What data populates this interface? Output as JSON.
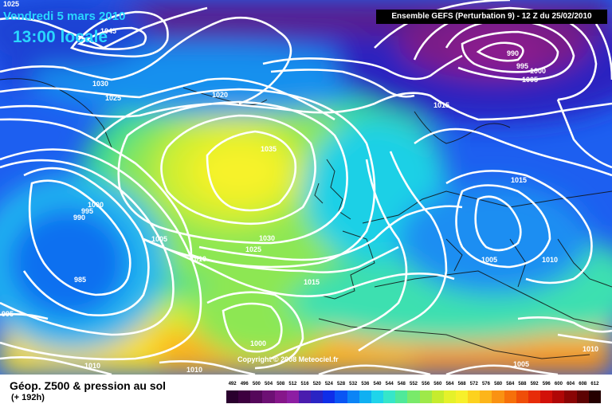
{
  "header": {
    "date_title": "Vendredi 5 mars 2010",
    "time_title": "13:00 locale",
    "run_info": "Ensemble GEFS (Perturbation 9)  - 12 Z du 25/02/2010"
  },
  "map": {
    "isobars": [
      "1025",
      "1045",
      "1030",
      "1025",
      "1020",
      "1035",
      "1015",
      "990",
      "995",
      "1000",
      "1005",
      "1000",
      "995",
      "990",
      "1005",
      "1010",
      "1030",
      "1025",
      "1015",
      "985",
      "995",
      "1015",
      "1005",
      "1010",
      "1000",
      "1010",
      "1010",
      "1005",
      "1010"
    ],
    "copyright": "Copyright © 2008 Meteociel.fr"
  },
  "footer": {
    "caption": "Géop. Z500 & pression au sol",
    "subcaption": "(+ 192h)",
    "scale_labels": [
      "492",
      "496",
      "500",
      "504",
      "508",
      "512",
      "516",
      "520",
      "524",
      "528",
      "532",
      "536",
      "540",
      "544",
      "548",
      "552",
      "556",
      "560",
      "564",
      "568",
      "572",
      "576",
      "580",
      "584",
      "588",
      "592",
      "596",
      "600",
      "604",
      "608",
      "612"
    ],
    "scale_colors": [
      "#2a002e",
      "#3d003f",
      "#55075a",
      "#6d1074",
      "#86168a",
      "#8d1ea3",
      "#4a1cae",
      "#2a24c4",
      "#0f2ee8",
      "#0a55f4",
      "#0b84f6",
      "#0fb0f2",
      "#1fd4ea",
      "#36e6c9",
      "#4fe99a",
      "#79ea6a",
      "#9ee949",
      "#c6ec2d",
      "#e5f12a",
      "#f7f02b",
      "#fdd21e",
      "#fdb51a",
      "#fa9212",
      "#f6700a",
      "#ef4e08",
      "#e72c08",
      "#d21008",
      "#b00706",
      "#8a0404",
      "#5d0202",
      "#250000"
    ]
  }
}
